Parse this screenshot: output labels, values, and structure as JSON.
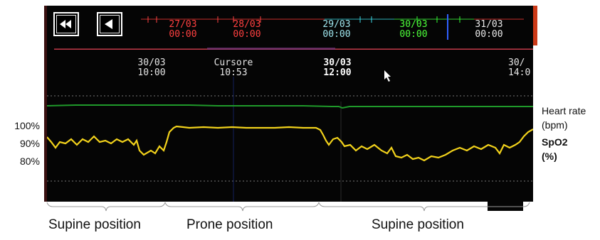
{
  "timeline": {
    "dates": [
      {
        "date": "27/03",
        "time": "00:00",
        "color": "#ff3b3b"
      },
      {
        "date": "28/03",
        "time": "00:00",
        "color": "#ff3b3b"
      },
      {
        "date": "29/03",
        "time": "00:00",
        "color": "#9fe6ee"
      },
      {
        "date": "30/03",
        "time": "00:00",
        "color": "#4dff3a"
      },
      {
        "date": "31/03",
        "time": "00:00",
        "color": "#e8e8e8"
      }
    ]
  },
  "scale": {
    "left": {
      "date": "30/03",
      "time": "10:00"
    },
    "cursor": {
      "label": "Cursore",
      "time": "10:53"
    },
    "mid": {
      "date": "30/03",
      "time": "12:00"
    },
    "right": {
      "date": "30/",
      "time": "14:0"
    }
  },
  "y_axis_labels": [
    "100%",
    "90%",
    "80%"
  ],
  "right_labels": {
    "heart_rate": "Heart rate",
    "heart_unit": "(bpm)",
    "spo2": "SpO2",
    "spo2_unit": "(%)"
  },
  "positions": [
    "Supine position",
    "Prone position",
    "Supine position"
  ],
  "colors": {
    "heart_trace": "#1f9a2a",
    "spo2_trace": "#f2d21b",
    "timeline_line": "#c8302b",
    "scrubber": "#c23a4a"
  }
}
